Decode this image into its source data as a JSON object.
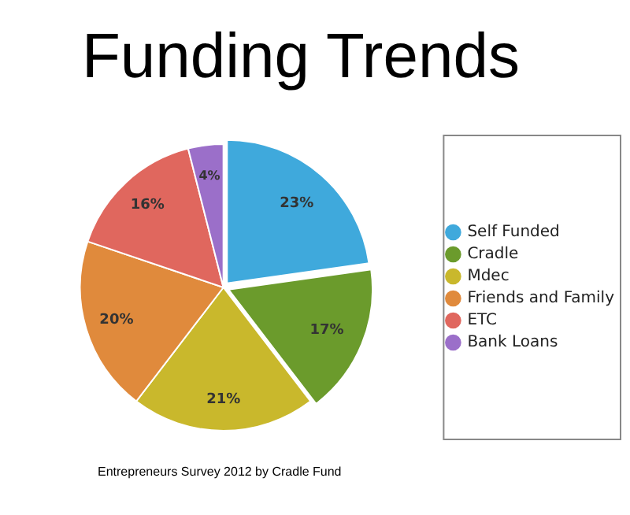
{
  "chart_data": {
    "type": "pie",
    "title": "Funding Trends",
    "categories": [
      "Self Funded",
      "Cradle",
      "Mdec",
      "Friends and Family",
      "ETC",
      "Bank Loans"
    ],
    "values": [
      23,
      17,
      21,
      20,
      16,
      4
    ],
    "colors": [
      "#3fa9dc",
      "#6b9b2c",
      "#c9b82c",
      "#e08a3c",
      "#e0675e",
      "#9b6fc9"
    ],
    "value_labels": [
      "23%",
      "17%",
      "21%",
      "20%",
      "16%",
      "4%"
    ],
    "legend": "right",
    "annotations": [
      "Entrepreneurs Survey 2012 by Cradle Fund"
    ]
  }
}
